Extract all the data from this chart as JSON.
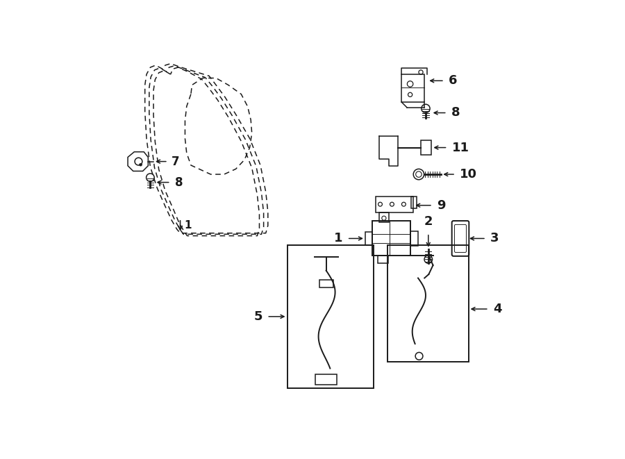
{
  "bg_color": "#ffffff",
  "line_color": "#1a1a1a",
  "fig_width": 9.0,
  "fig_height": 6.61,
  "dpi": 100,
  "door": {
    "outer1_x": [
      1.55,
      1.42,
      1.32,
      1.25,
      1.22,
      1.22,
      1.25,
      1.32,
      1.45,
      1.6,
      1.72,
      1.82,
      1.88,
      3.48,
      3.52,
      3.52,
      3.48,
      3.38,
      3.18,
      2.92,
      2.72,
      2.55,
      2.42,
      1.9,
      1.7,
      1.6,
      1.55
    ],
    "outer1_y": [
      6.35,
      6.42,
      6.38,
      6.25,
      6.05,
      5.55,
      5.05,
      4.52,
      4.12,
      3.78,
      3.52,
      3.35,
      3.28,
      3.28,
      3.42,
      3.68,
      4.05,
      4.55,
      5.05,
      5.5,
      5.82,
      6.05,
      6.22,
      6.38,
      6.45,
      6.42,
      6.35
    ],
    "outer2_x": [
      1.62,
      1.5,
      1.4,
      1.33,
      1.3,
      1.3,
      1.33,
      1.4,
      1.52,
      1.67,
      1.79,
      1.89,
      1.94,
      3.4,
      3.44,
      3.44,
      3.4,
      3.3,
      3.1,
      2.85,
      2.65,
      2.48,
      2.35,
      1.96,
      1.77,
      1.67,
      1.62
    ],
    "outer2_y": [
      6.3,
      6.37,
      6.33,
      6.2,
      6.0,
      5.52,
      5.02,
      4.5,
      4.1,
      3.76,
      3.5,
      3.33,
      3.26,
      3.26,
      3.4,
      3.66,
      4.03,
      4.53,
      5.03,
      5.48,
      5.8,
      6.03,
      6.19,
      6.34,
      6.41,
      6.38,
      6.3
    ],
    "outer3_x": [
      1.7,
      1.58,
      1.48,
      1.41,
      1.38,
      1.38,
      1.41,
      1.48,
      1.6,
      1.75,
      1.86,
      1.96,
      2.01,
      3.32,
      3.36,
      3.36,
      3.32,
      3.22,
      3.02,
      2.78,
      2.58,
      2.41,
      2.28,
      2.02,
      1.84,
      1.74,
      1.7
    ],
    "outer3_y": [
      6.25,
      6.32,
      6.28,
      6.15,
      5.95,
      5.49,
      4.99,
      4.47,
      4.07,
      3.73,
      3.47,
      3.3,
      3.23,
      3.23,
      3.37,
      3.63,
      4.0,
      4.5,
      5.0,
      5.45,
      5.77,
      6.0,
      6.16,
      6.3,
      6.38,
      6.35,
      6.25
    ],
    "window_x": [
      2.08,
      2.0,
      1.97,
      1.97,
      2.0,
      2.08,
      2.45,
      2.7,
      2.92,
      3.08,
      3.18,
      3.22,
      3.2,
      3.14,
      3.02,
      2.78,
      2.55,
      2.3,
      2.1,
      2.08
    ],
    "window_y": [
      5.88,
      5.65,
      5.38,
      5.05,
      4.78,
      4.55,
      4.38,
      4.38,
      4.48,
      4.65,
      4.88,
      5.15,
      5.4,
      5.65,
      5.88,
      6.05,
      6.18,
      6.18,
      6.05,
      5.88
    ]
  }
}
